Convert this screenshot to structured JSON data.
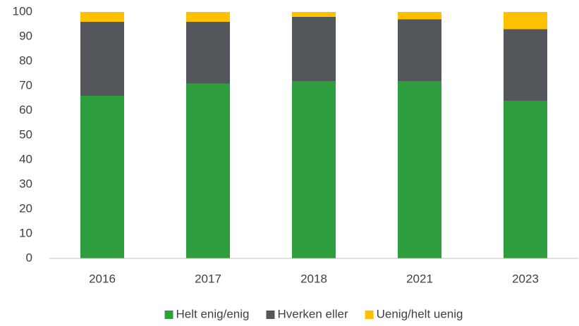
{
  "chart_data": {
    "type": "stacked_bar",
    "categories": [
      "2016",
      "2017",
      "2018",
      "2021",
      "2023"
    ],
    "series": [
      {
        "name": "Helt enig/enig",
        "color": "#2e9e3e",
        "values": [
          66,
          71,
          72,
          72,
          64
        ]
      },
      {
        "name": "Hverken eller",
        "color": "#53565a",
        "values": [
          30,
          25,
          26,
          25,
          29
        ]
      },
      {
        "name": "Uenig/helt uenig",
        "color": "#ffc000",
        "values": [
          4,
          4,
          2,
          3,
          7
        ]
      }
    ],
    "ylim": [
      0,
      100
    ],
    "yticks": [
      0,
      10,
      20,
      30,
      40,
      50,
      60,
      70,
      80,
      90,
      100
    ],
    "grid": false,
    "legend": "bottom"
  }
}
